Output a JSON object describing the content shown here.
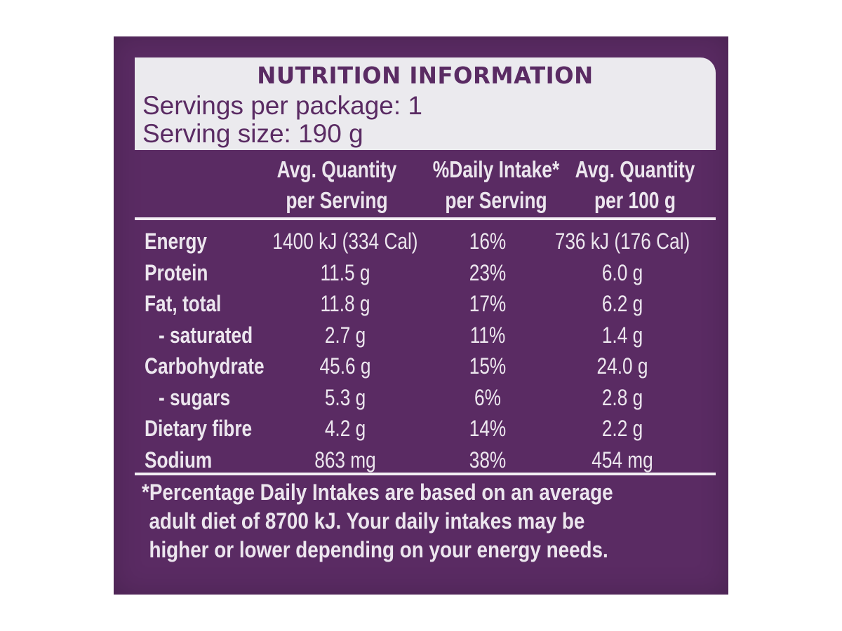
{
  "header": {
    "title": "NUTRITION INFORMATION",
    "servings_per_package": "Servings per package: 1",
    "serving_size": "Serving size: 190 g"
  },
  "columns": {
    "per_serving_line1": "Avg. Quantity",
    "per_serving_line2": "per Serving",
    "daily_intake_line1": "%Daily Intake*",
    "daily_intake_line2": "per Serving",
    "per_100g_line1": "Avg. Quantity",
    "per_100g_line2": "per 100 g"
  },
  "rows": [
    {
      "nutrient": "Energy",
      "per_serving": "1400 kJ (334 Cal)",
      "daily_intake": "16%",
      "per_100g": "736 kJ (176 Cal)"
    },
    {
      "nutrient": "Protein",
      "per_serving": "11.5 g",
      "daily_intake": "23%",
      "per_100g": "6.0 g"
    },
    {
      "nutrient": "Fat, total",
      "per_serving": "11.8 g",
      "daily_intake": "17%",
      "per_100g": "6.2 g"
    },
    {
      "nutrient": "- saturated",
      "per_serving": "2.7 g",
      "daily_intake": "11%",
      "per_100g": "1.4 g"
    },
    {
      "nutrient": "Carbohydrate",
      "per_serving": "45.6 g",
      "daily_intake": "15%",
      "per_100g": "24.0 g"
    },
    {
      "nutrient": "- sugars",
      "per_serving": "5.3 g",
      "daily_intake": "6%",
      "per_100g": "2.8 g"
    },
    {
      "nutrient": "Dietary fibre",
      "per_serving": "4.2 g",
      "daily_intake": "14%",
      "per_100g": "2.2 g"
    },
    {
      "nutrient": "Sodium",
      "per_serving": "863 mg",
      "daily_intake": "38%",
      "per_100g": "454 mg"
    }
  ],
  "footnote": {
    "line1": "*Percentage Daily Intakes are based on an average",
    "line2": "adult diet of 8700 kJ. Your daily intakes may be",
    "line3": "higher or lower depending on your energy needs."
  },
  "colors": {
    "panel": "#5a2b63",
    "header_box": "#ebeaee",
    "text_light": "#ece6ee"
  }
}
